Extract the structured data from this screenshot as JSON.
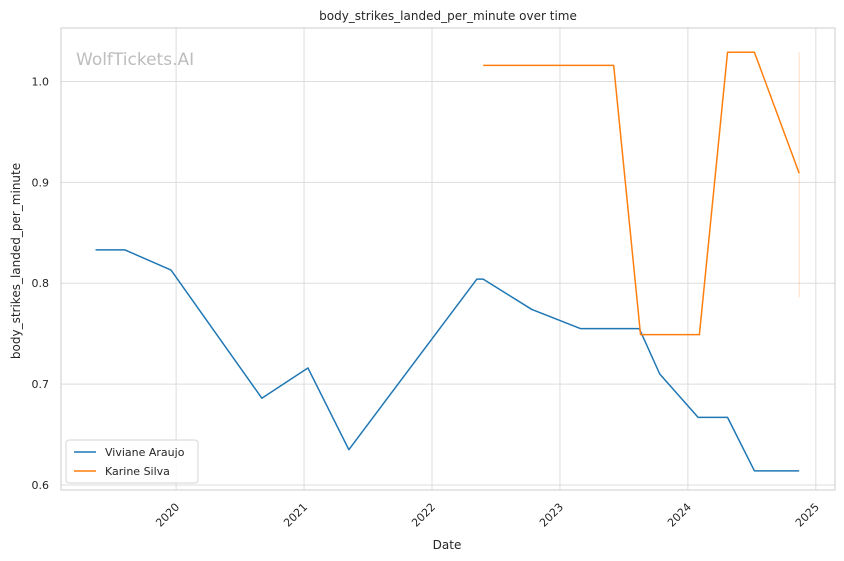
{
  "chart_data": {
    "type": "line",
    "title": "body_strikes_landed_per_minute over time",
    "xlabel": "Date",
    "ylabel": "body_strikes_landed_per_minute",
    "watermark": "WolfTickets.AI",
    "xlim": [
      2019.1,
      2025.15
    ],
    "ylim": [
      0.595,
      1.053
    ],
    "x_ticks": [
      2020,
      2021,
      2022,
      2023,
      2024,
      2025
    ],
    "x_tick_labels": [
      "2020",
      "2021",
      "2022",
      "2023",
      "2024",
      "2025"
    ],
    "y_ticks": [
      0.6,
      0.7,
      0.8,
      0.9,
      1.0
    ],
    "y_tick_labels": [
      "0.6",
      "0.7",
      "0.8",
      "0.9",
      "1.0"
    ],
    "grid": true,
    "legend_position": "lower-left",
    "series": [
      {
        "name": "Viviane Araujo",
        "color": "#1f77b4",
        "x": [
          2019.37,
          2019.6,
          2019.96,
          2020.67,
          2021.03,
          2021.35,
          2022.35,
          2022.4,
          2022.78,
          2023.16,
          2023.62,
          2023.78,
          2024.08,
          2024.31,
          2024.52,
          2024.87
        ],
        "y": [
          0.833,
          0.833,
          0.813,
          0.686,
          0.716,
          0.635,
          0.804,
          0.804,
          0.774,
          0.755,
          0.755,
          0.71,
          0.667,
          0.667,
          0.614,
          0.614
        ]
      },
      {
        "name": "Karine Silva",
        "color": "#ff7f0e",
        "x": [
          2022.4,
          2023.42,
          2023.63,
          2024.09,
          2024.31,
          2024.52,
          2024.87
        ],
        "y": [
          1.016,
          1.016,
          0.749,
          0.749,
          1.029,
          1.029,
          0.909
        ]
      }
    ],
    "error_bar": {
      "x": 2024.87,
      "y_low": 0.786,
      "y_high": 1.029,
      "color": "#ff7f0e"
    }
  }
}
